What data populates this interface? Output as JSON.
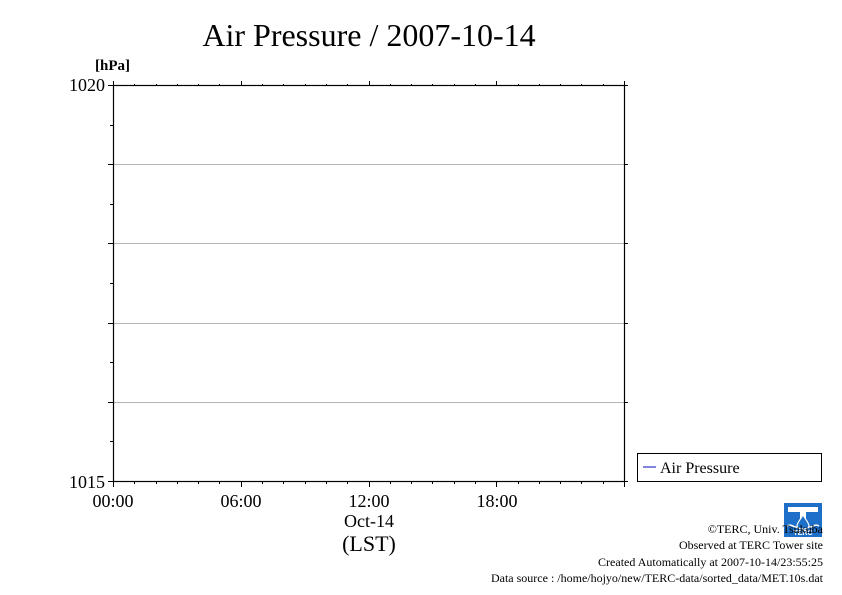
{
  "chart_data": {
    "type": "line",
    "title": "Air Pressure / 2007-10-14",
    "ylabel": "[hPa]",
    "ylim": [
      1015,
      1020
    ],
    "y_tick_labels": [
      "1020",
      "1015"
    ],
    "y_gridlines": [
      1016,
      1017,
      1018,
      1019
    ],
    "xlim": [
      "00:00",
      "24:00"
    ],
    "x_tick_labels": [
      "00:00",
      "06:00",
      "12:00",
      "18:00"
    ],
    "x_date_label": "Oct-14",
    "x_axis_label": "(LST)",
    "grid": true,
    "legend_position": "right, below plot",
    "series": [
      {
        "name": "Air Pressure",
        "color": "#3333cc",
        "x": [],
        "y": []
      }
    ]
  },
  "credits": {
    "copyright": "©TERC, Univ. Tsukuba",
    "observed": "Observed at TERC Tower site",
    "created": "Created Automatically at 2007-10-14/23:55:25",
    "source": "Data source : /home/hojyo/new/TERC-data/sorted_data/MET.10s.dat"
  },
  "logo": {
    "text": "TERC",
    "color": "#1e6fc8"
  }
}
